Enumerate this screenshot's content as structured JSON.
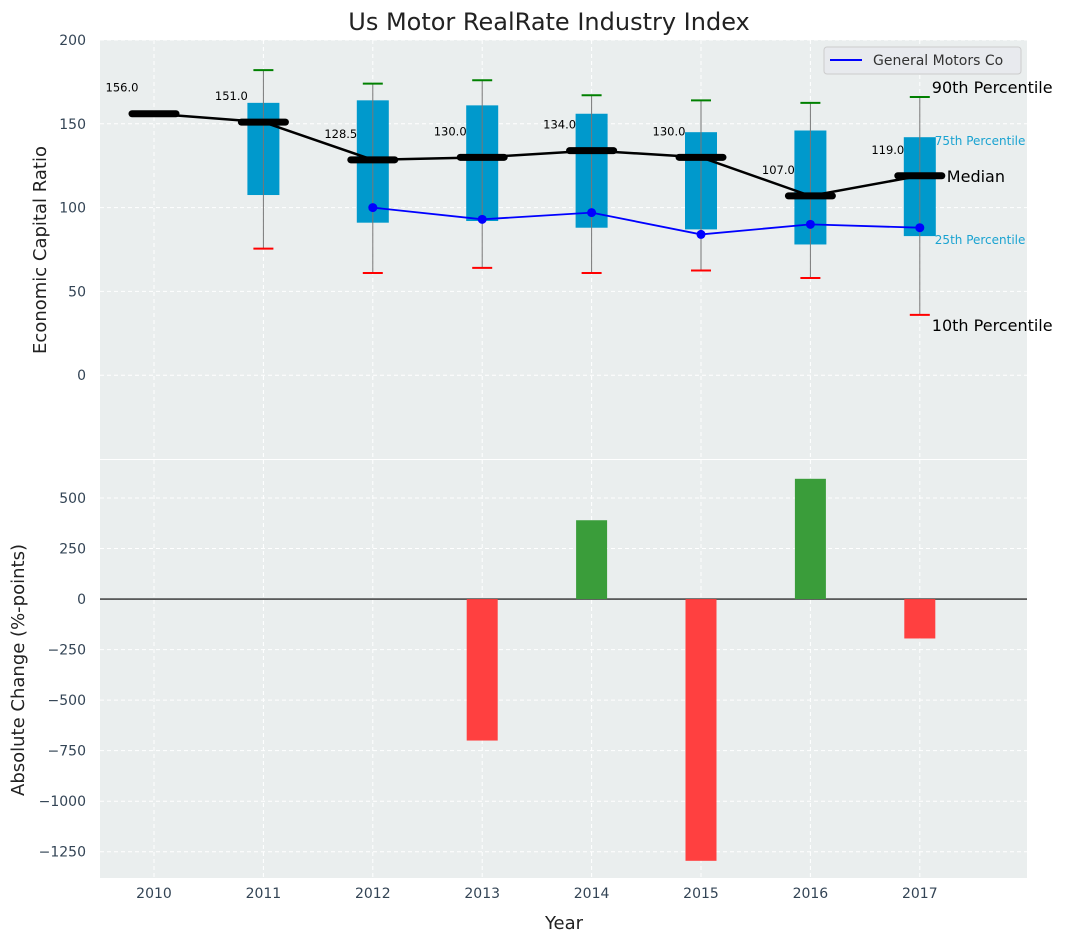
{
  "chart_data": [
    {
      "type": "box",
      "title": "Us Motor RealRate Industry Index",
      "ylabel": "Economic Capital Ratio",
      "ylim": [
        -50,
        200
      ],
      "yticks": [
        0,
        50,
        100,
        150,
        200
      ],
      "categories": [
        "2010",
        "2011",
        "2012",
        "2013",
        "2014",
        "2015",
        "2016",
        "2017"
      ],
      "median": [
        156.0,
        151.0,
        128.5,
        130.0,
        134.0,
        130.0,
        107.0,
        119.0
      ],
      "median_labels": [
        "156.0",
        "151.0",
        "128.5",
        "130.0",
        "134.0",
        "130.0",
        "107.0",
        "119.0"
      ],
      "p25": [
        null,
        107.5,
        91,
        92,
        88,
        87,
        78,
        83
      ],
      "p75": [
        null,
        162.5,
        164,
        161,
        156,
        145,
        146,
        142
      ],
      "p10": [
        null,
        75.5,
        61,
        64,
        61,
        62.5,
        58,
        36
      ],
      "p90": [
        null,
        182,
        174,
        176,
        167,
        164,
        162.5,
        166
      ],
      "series": [
        {
          "name": "General Motors Co",
          "values": [
            null,
            null,
            100,
            93,
            97,
            84,
            90,
            88
          ],
          "color": "#0000ff"
        }
      ],
      "legend": "top-right",
      "annotations": {
        "p90": "90th Percentile",
        "p75": "75th Percentile",
        "median": "Median",
        "p25": "25th Percentile",
        "p10": "10th Percentile"
      },
      "colors": {
        "box": "#0099cc",
        "median": "#000000",
        "p90": "#008000",
        "p10": "#ff0000"
      }
    },
    {
      "type": "bar",
      "xlabel": "Year",
      "ylabel": "Absolute Change (%-points)",
      "ylim": [
        -1380,
        688
      ],
      "yticks": [
        -1250,
        -1000,
        -750,
        -500,
        -250,
        0,
        250,
        500
      ],
      "ytick_labels": [
        "−1250",
        "−1000",
        "−750",
        "−500",
        "−250",
        "0",
        "250",
        "500"
      ],
      "categories": [
        "2010",
        "2011",
        "2012",
        "2013",
        "2014",
        "2015",
        "2016",
        "2017"
      ],
      "values": [
        null,
        null,
        null,
        -700,
        390,
        -1295,
        595,
        -195
      ],
      "colors": {
        "positive": "#3a9d3a",
        "negative": "#ff4040"
      }
    }
  ]
}
